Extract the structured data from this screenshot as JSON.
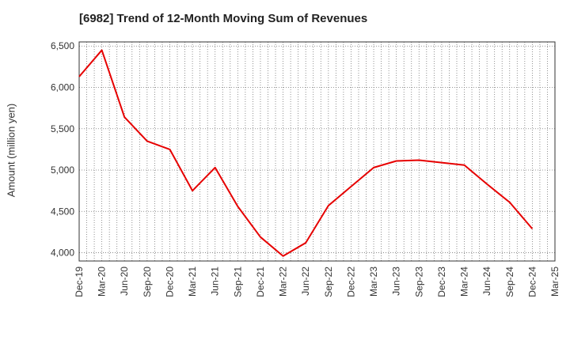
{
  "chart_data": {
    "type": "line",
    "title": "[6982]  Trend of 12-Month Moving Sum of Revenues",
    "ylabel": "Amount (million yen)",
    "xlabel": "",
    "ylim": [
      3900,
      6550
    ],
    "yticks": [
      4000,
      4500,
      5000,
      5500,
      6000,
      6500
    ],
    "ytick_labels": [
      "4,000",
      "4,500",
      "5,000",
      "5,500",
      "6,000",
      "6,500"
    ],
    "x_tick_labels": [
      "Dec-19",
      "Mar-20",
      "Jun-20",
      "Sep-20",
      "Dec-20",
      "Mar-21",
      "Jun-21",
      "Sep-21",
      "Dec-21",
      "Mar-22",
      "Jun-22",
      "Sep-22",
      "Dec-22",
      "Mar-23",
      "Jun-23",
      "Sep-23",
      "Dec-23",
      "Mar-24",
      "Jun-24",
      "Sep-24",
      "Dec-24",
      "Mar-25"
    ],
    "grid": true,
    "series": [
      {
        "color": "#e60000",
        "x": [
          "Dec-19",
          "Mar-20",
          "Jun-20",
          "Sep-20",
          "Dec-20",
          "Mar-21",
          "Jun-21",
          "Sep-21",
          "Dec-21",
          "Mar-22",
          "Jun-22",
          "Sep-22",
          "Dec-22",
          "Mar-23",
          "Jun-23",
          "Sep-23",
          "Dec-23",
          "Mar-24",
          "Jun-24",
          "Sep-24",
          "Dec-24"
        ],
        "values": [
          6130,
          6450,
          5640,
          5350,
          5250,
          4750,
          5030,
          4560,
          4190,
          3960,
          4120,
          4570,
          4800,
          5030,
          5110,
          5120,
          5090,
          5060,
          4830,
          4610,
          4290
        ]
      }
    ]
  }
}
